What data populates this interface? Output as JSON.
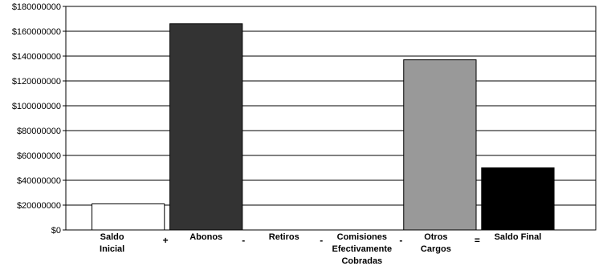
{
  "chart_data": {
    "type": "bar",
    "categories": [
      [
        "Saldo",
        "Inicial"
      ],
      [
        "Abonos"
      ],
      [
        "Retiros"
      ],
      [
        "Comisiones",
        "Efectivamente",
        "Cobradas"
      ],
      [
        "Otros",
        "Cargos"
      ],
      [
        "Saldo Final"
      ]
    ],
    "operators": [
      "+",
      "-",
      "-",
      "-",
      "="
    ],
    "values": [
      21000000,
      166000000,
      0,
      0,
      137000000,
      50000000
    ],
    "bar_colors": [
      "#ffffff",
      "#333333",
      "#ffffff",
      "#ffffff",
      "#999999",
      "#000000"
    ],
    "ylim": [
      0,
      180000000
    ],
    "yticks": [
      0,
      20000000,
      40000000,
      60000000,
      80000000,
      100000000,
      120000000,
      140000000,
      160000000,
      180000000
    ],
    "ytick_labels": [
      "$0",
      "$20000000",
      "$40000000",
      "$60000000",
      "$80000000",
      "$100000000",
      "$120000000",
      "$140000000",
      "$160000000",
      "$180000000"
    ],
    "grid": true,
    "title": "",
    "xlabel": "",
    "ylabel": ""
  }
}
